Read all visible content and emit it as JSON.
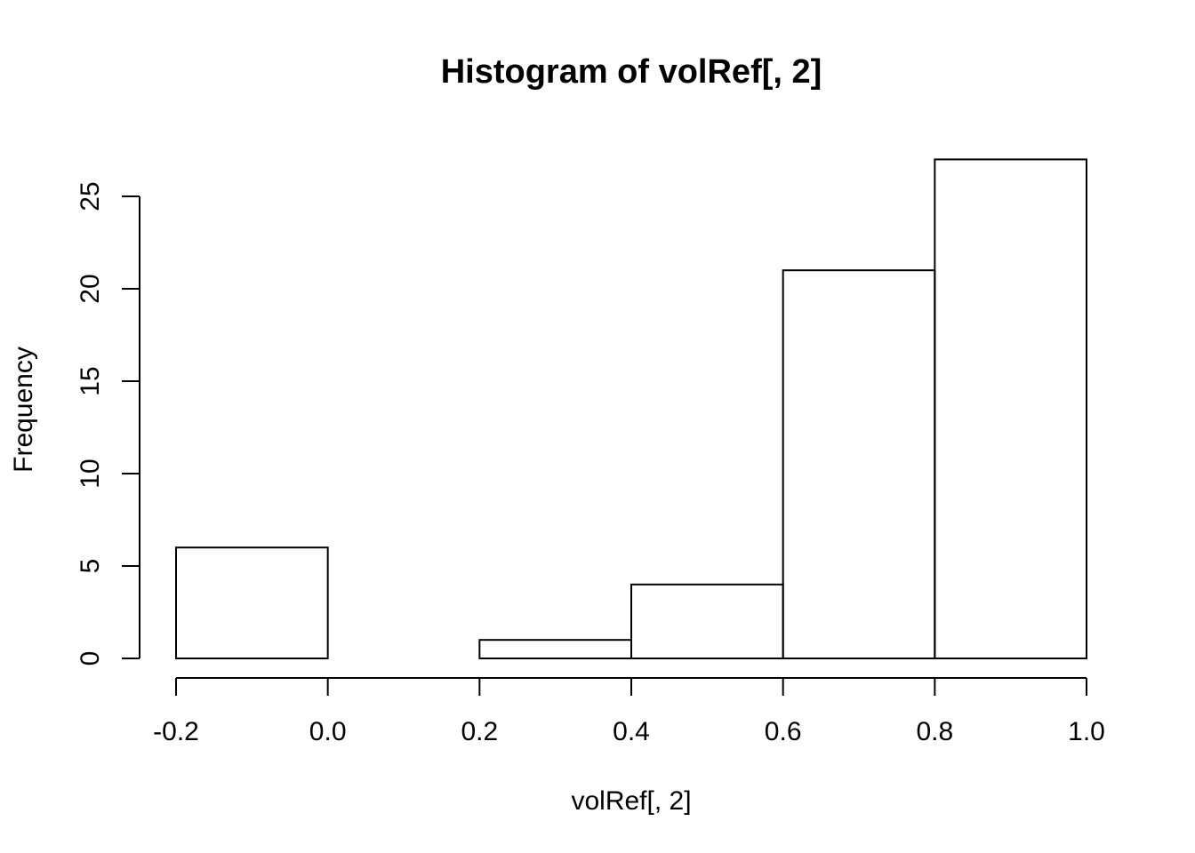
{
  "chart_data": {
    "type": "bar",
    "title": "Histogram of volRef[, 2]",
    "xlabel": "volRef[, 2]",
    "ylabel": "Frequency",
    "bins": [
      {
        "from": -0.2,
        "to": 0.0,
        "count": 6
      },
      {
        "from": 0.0,
        "to": 0.2,
        "count": 0
      },
      {
        "from": 0.2,
        "to": 0.4,
        "count": 1
      },
      {
        "from": 0.4,
        "to": 0.6,
        "count": 4
      },
      {
        "from": 0.6,
        "to": 0.8,
        "count": 21
      },
      {
        "from": 0.8,
        "to": 1.0,
        "count": 27
      }
    ],
    "x_ticks": [
      -0.2,
      0.0,
      0.2,
      0.4,
      0.6,
      0.8,
      1.0
    ],
    "x_tick_labels": [
      "-0.2",
      "0.0",
      "0.2",
      "0.4",
      "0.6",
      "0.8",
      "1.0"
    ],
    "y_ticks": [
      0,
      5,
      10,
      15,
      20,
      25
    ],
    "y_tick_labels": [
      "0",
      "5",
      "10",
      "15",
      "20",
      "25"
    ],
    "xlim": [
      -0.2,
      1.0
    ],
    "ylim": [
      0,
      27
    ],
    "grid": false,
    "legend": "none",
    "colors": {
      "bar_fill": "#ffffff",
      "bar_stroke": "#000000"
    }
  }
}
